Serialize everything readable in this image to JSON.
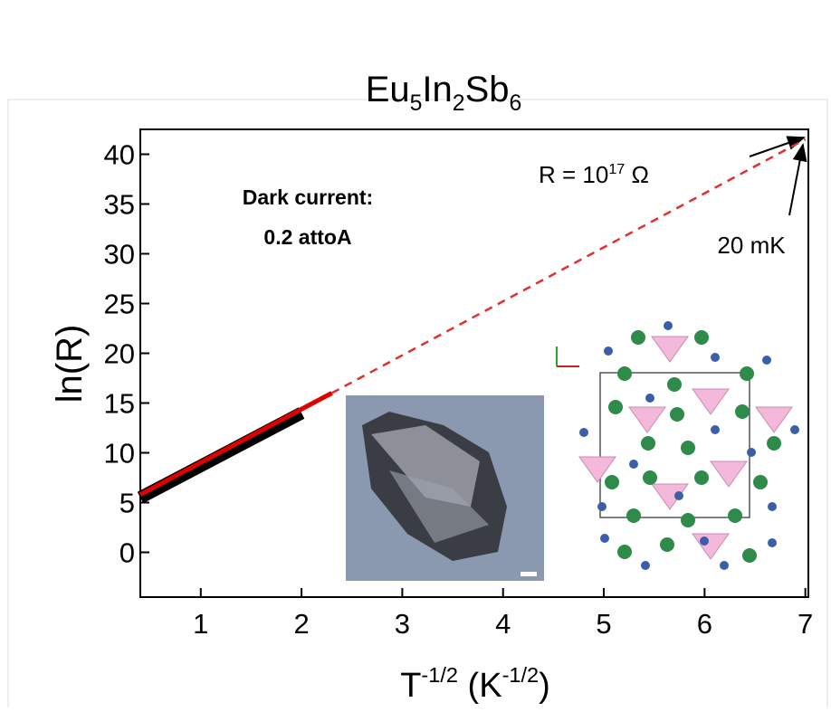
{
  "chart_data": {
    "type": "line",
    "title": [
      "Eu",
      "5",
      "In",
      "2",
      "Sb",
      "6"
    ],
    "x_label": [
      "T",
      "-1/2",
      " (K",
      "-1/2",
      ")"
    ],
    "y_label": "ln(R)",
    "xlim": [
      0.4,
      7.03
    ],
    "xticks": [
      1,
      2,
      3,
      4,
      5,
      6,
      7
    ],
    "ylim": [
      -4.5,
      42.5
    ],
    "yticks": [
      0,
      5,
      10,
      15,
      20,
      25,
      30,
      35,
      40
    ],
    "series": [
      {
        "color": "#000000",
        "x": [
          0.4,
          2.0
        ],
        "values": [
          5.5,
          14.0
        ]
      },
      {
        "color": "#e00000",
        "x": [
          0.4,
          2.3
        ],
        "values": [
          5.8,
          16.0
        ]
      },
      {
        "color": "#e03030",
        "dashed": true,
        "x": [
          2.3,
          7.0
        ],
        "values": [
          16.0,
          41.5
        ]
      }
    ],
    "annotations": {
      "dark_current": [
        "Dark current:",
        "0.2 attoA"
      ],
      "resistance": [
        "R = 10",
        "17",
        " Ω"
      ],
      "temperature": "20 mK"
    }
  }
}
